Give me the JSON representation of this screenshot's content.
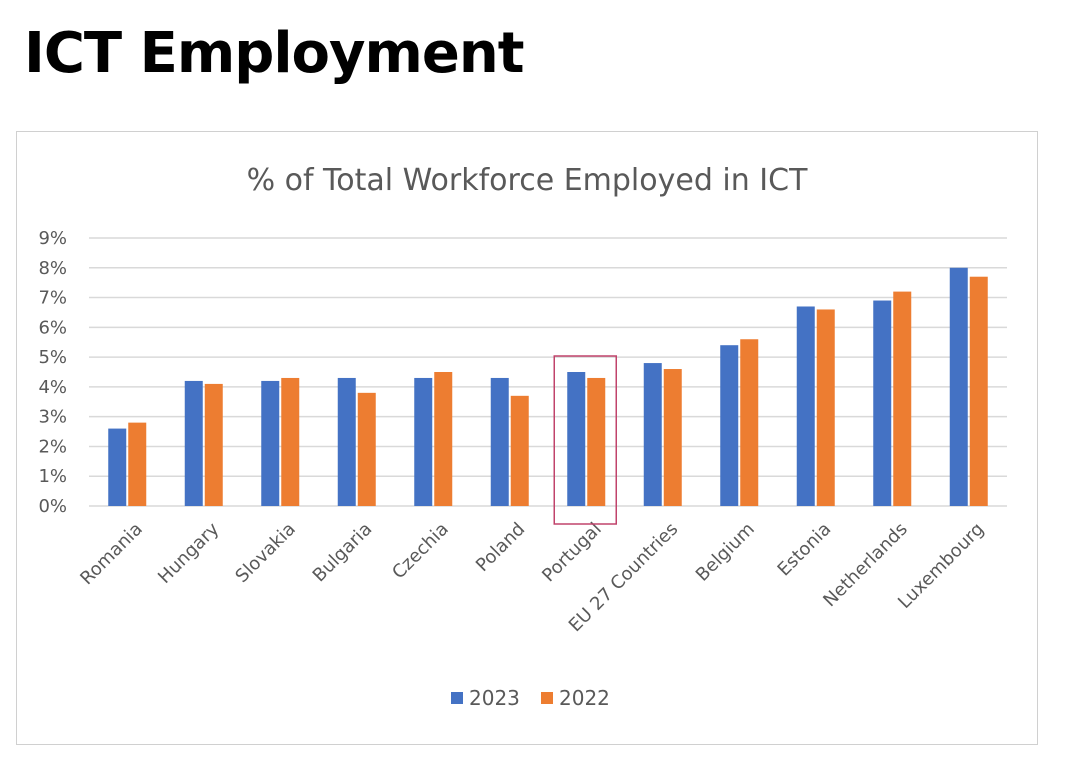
{
  "page": {
    "title": "ICT Employment"
  },
  "chart_data": {
    "type": "bar",
    "title": "% of Total Workforce Employed in ICT",
    "xlabel": "",
    "ylabel": "",
    "ylim": [
      0,
      9
    ],
    "y_ticks": [
      "0%",
      "1%",
      "2%",
      "3%",
      "4%",
      "5%",
      "6%",
      "7%",
      "8%",
      "9%"
    ],
    "grid": true,
    "legend_position": "bottom",
    "categories": [
      "Romania",
      "Hungary",
      "Slovakia",
      "Bulgaria",
      "Czechia",
      "Poland",
      "Portugal",
      "EU 27 Countries",
      "Belgium",
      "Estonia",
      "Netherlands",
      "Luxembourg"
    ],
    "series": [
      {
        "name": "2023",
        "color": "#4472c4",
        "values": [
          2.6,
          4.2,
          4.2,
          4.3,
          4.3,
          4.3,
          4.5,
          4.8,
          5.4,
          6.7,
          6.9,
          8.0
        ]
      },
      {
        "name": "2022",
        "color": "#ed7d31",
        "values": [
          2.8,
          4.1,
          4.3,
          3.8,
          4.5,
          3.7,
          4.3,
          4.6,
          5.6,
          6.6,
          7.2,
          7.7
        ]
      }
    ],
    "highlight": {
      "category": "Portugal",
      "color": "#c0436b"
    }
  }
}
